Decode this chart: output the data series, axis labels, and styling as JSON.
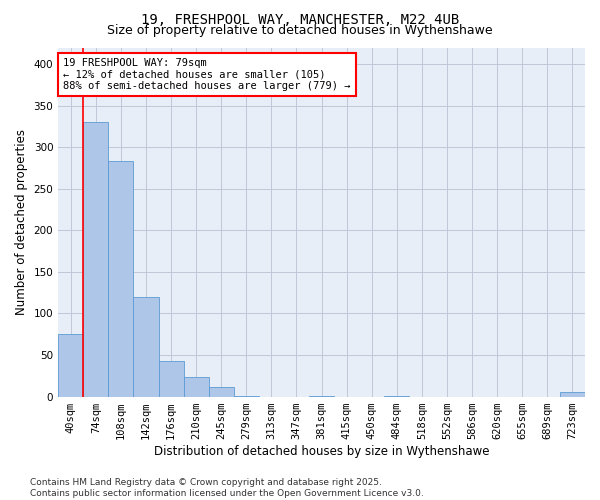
{
  "title1": "19, FRESHPOOL WAY, MANCHESTER, M22 4UB",
  "title2": "Size of property relative to detached houses in Wythenshawe",
  "xlabel": "Distribution of detached houses by size in Wythenshawe",
  "ylabel": "Number of detached properties",
  "bin_labels": [
    "40sqm",
    "74sqm",
    "108sqm",
    "142sqm",
    "176sqm",
    "210sqm",
    "245sqm",
    "279sqm",
    "313sqm",
    "347sqm",
    "381sqm",
    "415sqm",
    "450sqm",
    "484sqm",
    "518sqm",
    "552sqm",
    "586sqm",
    "620sqm",
    "655sqm",
    "689sqm",
    "723sqm"
  ],
  "bar_heights": [
    75,
    330,
    283,
    120,
    43,
    23,
    12,
    1,
    0,
    0,
    1,
    0,
    0,
    1,
    0,
    0,
    0,
    0,
    0,
    0,
    5
  ],
  "bar_color": "#aec6e8",
  "bar_edge_color": "#5b9bd5",
  "property_line_x": 0.5,
  "annotation_line1": "19 FRESHPOOL WAY: 79sqm",
  "annotation_line2": "← 12% of detached houses are smaller (105)",
  "annotation_line3": "88% of semi-detached houses are larger (779) →",
  "annotation_box_color": "white",
  "annotation_box_edge": "red",
  "ylim": [
    0,
    420
  ],
  "yticks": [
    0,
    50,
    100,
    150,
    200,
    250,
    300,
    350,
    400
  ],
  "grid_color": "#c0c8d8",
  "background_color": "#e8eef8",
  "footer_line1": "Contains HM Land Registry data © Crown copyright and database right 2025.",
  "footer_line2": "Contains public sector information licensed under the Open Government Licence v3.0.",
  "title_fontsize": 10,
  "subtitle_fontsize": 9,
  "axis_label_fontsize": 8.5,
  "tick_fontsize": 7.5,
  "annotation_fontsize": 7.5,
  "footer_fontsize": 6.5
}
